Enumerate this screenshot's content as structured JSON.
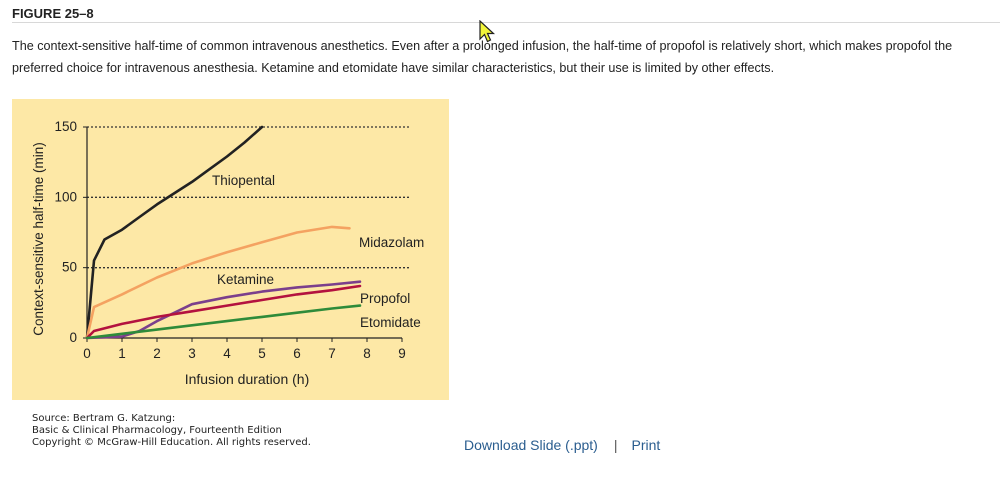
{
  "figure": {
    "label": "FIGURE 25–8",
    "caption": "The context-sensitive half-time of common intravenous anesthetics. Even after a prolonged infusion, the half-time of propofol is relatively short, which makes propofol the preferred choice for intravenous anesthesia. Ketamine and etomidate have similar characteristics, but their use is limited by other effects."
  },
  "chart_data": {
    "type": "line",
    "xlabel": "Infusion duration (h)",
    "ylabel": "Context-sensitive half-time (min)",
    "xlim": [
      0,
      9
    ],
    "ylim": [
      0,
      150
    ],
    "x_ticks": [
      "0",
      "1",
      "2",
      "3",
      "4",
      "5",
      "6",
      "7",
      "8",
      "9"
    ],
    "y_ticks": [
      "0",
      "50",
      "100",
      "150"
    ],
    "gridlines_y": [
      50,
      100,
      150
    ],
    "series": [
      {
        "name": "Thiopental",
        "color": "#222222",
        "x": [
          0,
          0.2,
          0.5,
          1,
          1.5,
          2,
          2.5,
          3,
          3.5,
          4,
          4.5,
          5
        ],
        "y": [
          0,
          55,
          70,
          77,
          86,
          95,
          103,
          111,
          120,
          129,
          139,
          150
        ]
      },
      {
        "name": "Midazolam",
        "color": "#f4a261",
        "x": [
          0,
          0.2,
          1,
          2,
          3,
          4,
          5,
          6,
          7,
          7.5
        ],
        "y": [
          0,
          22,
          31,
          43,
          53,
          61,
          68,
          75,
          79,
          78
        ]
      },
      {
        "name": "Ketamine",
        "color": "#7b3f8c",
        "x": [
          0,
          1,
          1.5,
          2,
          2.5,
          3,
          4,
          5,
          6,
          7,
          7.8
        ],
        "y": [
          0,
          1,
          5,
          12,
          18,
          24,
          29,
          33,
          36,
          38,
          40
        ]
      },
      {
        "name": "Propofol",
        "color": "#b3123f",
        "x": [
          0,
          0.2,
          1,
          2,
          3,
          4,
          5,
          6,
          7,
          7.8
        ],
        "y": [
          0,
          5,
          10,
          15,
          19,
          23,
          27,
          31,
          34,
          37
        ]
      },
      {
        "name": "Etomidate",
        "color": "#2e8b3a",
        "x": [
          0,
          1,
          2,
          3,
          4,
          5,
          6,
          7,
          7.8
        ],
        "y": [
          0,
          3,
          6,
          9,
          12,
          15,
          18,
          21,
          23
        ]
      }
    ],
    "labels": {
      "thiopental": "Thiopental",
      "midazolam": "Midazolam",
      "ketamine": "Ketamine",
      "propofol": "Propofol",
      "etomidate": "Etomidate"
    }
  },
  "source": {
    "line1": "Source: Bertram G. Katzung:",
    "line2": "Basic & Clinical Pharmacology, Fourteenth Edition",
    "line3": "Copyright © McGraw-Hill Education. All rights reserved."
  },
  "actions": {
    "download": "Download Slide (.ppt)",
    "separator": "|",
    "print": "Print"
  }
}
